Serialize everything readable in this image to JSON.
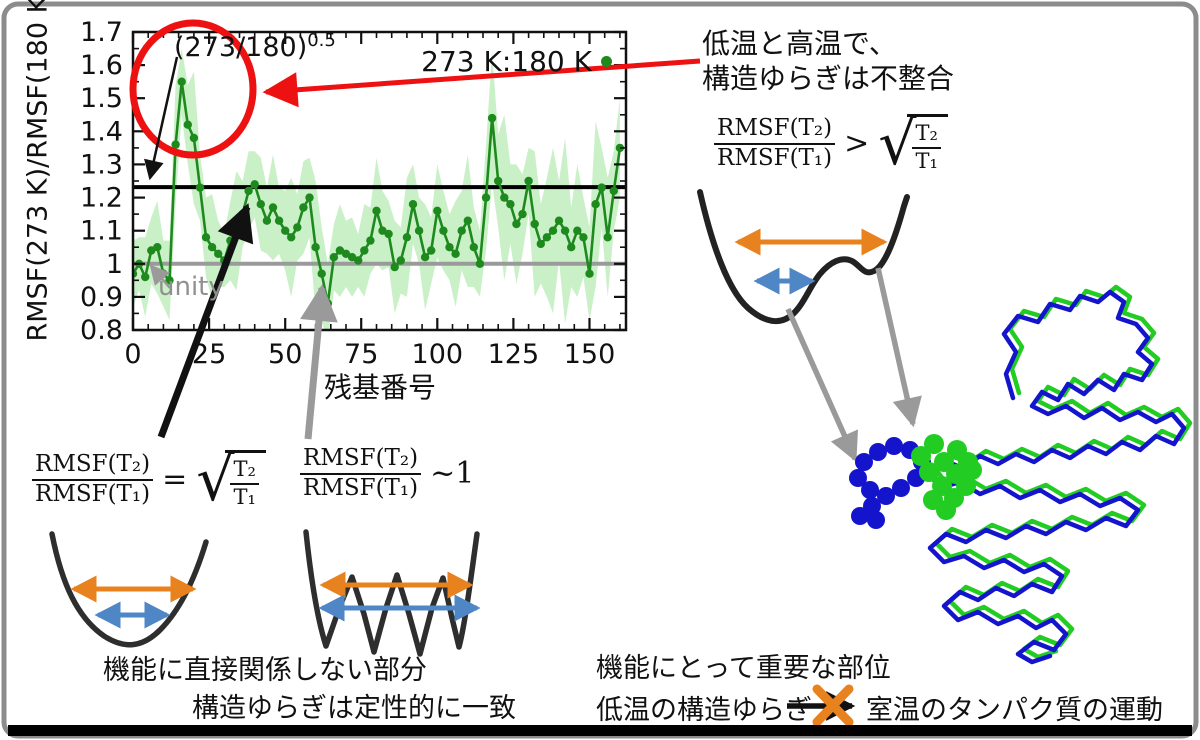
{
  "colors": {
    "series_green": "#1e8a1e",
    "band_green": "#8ade84",
    "annotation_red": "#ee1111",
    "arrow_orange": "#e8821e",
    "arrow_blue": "#4f86c6",
    "arrow_gray": "#9a9a9a",
    "unity_gray": "#9a9a9a",
    "line_black": "#000000",
    "protein_blue": "#1414cc",
    "protein_green": "#22cc22"
  },
  "chart_data": {
    "type": "line",
    "title": "",
    "xlabel": "残基番号",
    "ylabel": "RMSF(273 K)/RMSF(180 K)",
    "xlim": [
      0,
      162
    ],
    "ylim": [
      0.8,
      1.7
    ],
    "x_ticks": [
      0,
      25,
      50,
      75,
      100,
      125,
      150
    ],
    "y_ticks": [
      "0.8",
      "0.9",
      "1",
      "1.1",
      "1.2",
      "1.3",
      "1.4",
      "1.5",
      "1.6",
      "1.7"
    ],
    "grid": false,
    "legend_position": "top-right",
    "reference_lines": [
      {
        "label": "(273/180)^0.5",
        "value": 1.2317,
        "color": "#000000"
      },
      {
        "label": "unity",
        "value": 1.0,
        "color": "#9a9a9a"
      }
    ],
    "series": [
      {
        "name": "273 K:180 K",
        "x": [
          0,
          2,
          4,
          6,
          8,
          10,
          12,
          14,
          16,
          18,
          20,
          22,
          24,
          26,
          28,
          30,
          32,
          34,
          36,
          38,
          40,
          42,
          44,
          46,
          48,
          50,
          52,
          54,
          56,
          58,
          60,
          62,
          64,
          66,
          68,
          70,
          72,
          74,
          76,
          78,
          80,
          82,
          84,
          86,
          88,
          90,
          92,
          94,
          96,
          98,
          100,
          102,
          104,
          106,
          108,
          110,
          112,
          114,
          116,
          118,
          120,
          122,
          124,
          126,
          128,
          130,
          132,
          134,
          136,
          138,
          140,
          142,
          144,
          146,
          148,
          150,
          152,
          154,
          156,
          158,
          160
        ],
        "y": [
          0.97,
          1.0,
          0.96,
          1.04,
          1.05,
          0.97,
          0.95,
          1.36,
          1.55,
          1.42,
          1.38,
          1.23,
          1.08,
          1.05,
          1.03,
          1.01,
          1.07,
          1.1,
          1.15,
          1.22,
          1.24,
          1.18,
          1.13,
          1.17,
          1.13,
          1.1,
          1.08,
          1.11,
          1.17,
          1.2,
          1.05,
          0.97,
          0.88,
          1.02,
          1.04,
          1.03,
          1.02,
          1.01,
          1.04,
          1.07,
          1.16,
          1.1,
          1.09,
          0.99,
          1.01,
          1.08,
          1.18,
          1.1,
          1.02,
          1.04,
          1.16,
          1.1,
          1.05,
          1.03,
          1.1,
          1.13,
          1.05,
          1.0,
          1.2,
          1.44,
          1.25,
          1.2,
          1.18,
          1.12,
          1.15,
          1.25,
          1.12,
          1.06,
          1.08,
          1.1,
          1.13,
          1.1,
          1.05,
          1.1,
          1.08,
          0.97,
          1.18,
          1.23,
          1.08,
          1.22,
          1.35
        ],
        "band_halfwidth": [
          0.1,
          0.08,
          0.12,
          0.1,
          0.14,
          0.1,
          0.12,
          0.18,
          0.1,
          0.12,
          0.2,
          0.1,
          0.12,
          0.16,
          0.1,
          0.08,
          0.12,
          0.18,
          0.1,
          0.12,
          0.1,
          0.14,
          0.1,
          0.16,
          0.1,
          0.12,
          0.18,
          0.1,
          0.14,
          0.12,
          0.2,
          0.14,
          0.12,
          0.1,
          0.14,
          0.1,
          0.12,
          0.08,
          0.14,
          0.1,
          0.16,
          0.12,
          0.1,
          0.14,
          0.1,
          0.18,
          0.12,
          0.1,
          0.16,
          0.1,
          0.14,
          0.12,
          0.1,
          0.16,
          0.12,
          0.2,
          0.12,
          0.1,
          0.16,
          0.2,
          0.14,
          0.25,
          0.12,
          0.18,
          0.12,
          0.1,
          0.22,
          0.12,
          0.18,
          0.25,
          0.12,
          0.28,
          0.12,
          0.2,
          0.12,
          0.14,
          0.25,
          0.12,
          0.18,
          0.12,
          0.15
        ]
      }
    ]
  },
  "annotations": {
    "ratio_base": "(273/180)",
    "ratio_exp": "0.5",
    "unity": "unity",
    "legend": "273 K:180 K",
    "note_line1": "低温と高温で、",
    "note_line2": "構造ゆらぎは不整合",
    "cap_left_line1": "機能に直接関係しない部分",
    "cap_left_line2": "構造ゆらぎは定性的に一致",
    "cap_right_line1": "機能にとって重要な部位",
    "cap_right_low": "低温の構造ゆらぎ",
    "cap_right_room": "室温のタンパク質の運動"
  },
  "formulas": {
    "equal": {
      "num": "RMSF(T₂)",
      "den": "RMSF(T₁)",
      "op": "=",
      "radical": "√",
      "rad_num": "T₂",
      "rad_den": "T₁"
    },
    "approx": {
      "num": "RMSF(T₂)",
      "den": "RMSF(T₁)",
      "op": "~1"
    },
    "greater": {
      "num": "RMSF(T₂)",
      "den": "RMSF(T₁)",
      "op": ">",
      "radical": "√",
      "rad_num": "T₂",
      "rad_den": "T₁"
    }
  }
}
